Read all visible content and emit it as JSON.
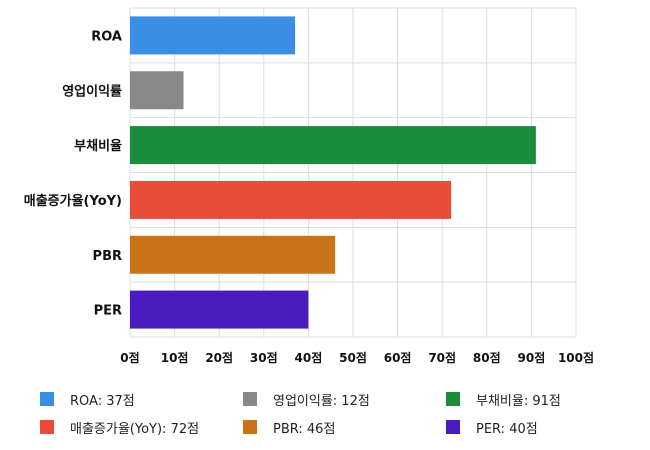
{
  "chart_data": {
    "type": "bar",
    "orientation": "horizontal",
    "categories": [
      "ROA",
      "영업이익률",
      "부채비율",
      "매출증가율(YoY)",
      "PBR",
      "PER"
    ],
    "values": [
      37,
      12,
      91,
      72,
      46,
      40
    ],
    "colors": [
      "#3a8ee6",
      "#888888",
      "#1a8c3a",
      "#e84d3a",
      "#c97318",
      "#4a1cc0"
    ],
    "xlim": [
      0,
      100
    ],
    "x_ticks": [
      "0점",
      "10점",
      "20점",
      "30점",
      "40점",
      "50점",
      "60점",
      "70점",
      "80점",
      "90점",
      "100점"
    ],
    "grid": true,
    "legend_position": "bottom",
    "legend": [
      {
        "label": "ROA: 37점",
        "color": "#3a8ee6"
      },
      {
        "label": "영업이익률: 12점",
        "color": "#888888"
      },
      {
        "label": "부채비율: 91점",
        "color": "#1a8c3a"
      },
      {
        "label": "매출증가율(YoY): 72점",
        "color": "#e84d3a"
      },
      {
        "label": "PBR: 46점",
        "color": "#c97318"
      },
      {
        "label": "PER: 40점",
        "color": "#4a1cc0"
      }
    ]
  }
}
